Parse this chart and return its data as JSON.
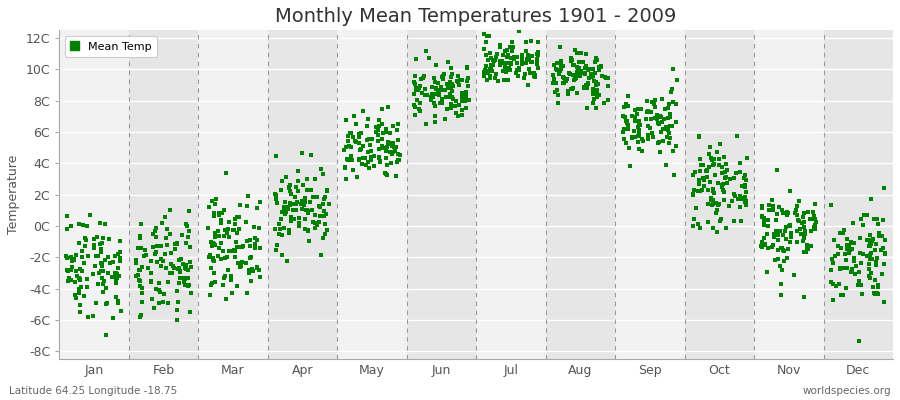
{
  "title": "Monthly Mean Temperatures 1901 - 2009",
  "ylabel": "Temperature",
  "subtitle_left": "Latitude 64.25 Longitude -18.75",
  "subtitle_right": "worldspecies.org",
  "yticks": [
    -8,
    -6,
    -4,
    -2,
    0,
    2,
    4,
    6,
    8,
    10,
    12
  ],
  "ytick_labels": [
    "-8C",
    "-6C",
    "-4C",
    "-2C",
    "0C",
    "2C",
    "4C",
    "6C",
    "8C",
    "10C",
    "12C"
  ],
  "ylim": [
    -8.5,
    12.5
  ],
  "months": [
    "Jan",
    "Feb",
    "Mar",
    "Apr",
    "May",
    "Jun",
    "Jul",
    "Aug",
    "Sep",
    "Oct",
    "Nov",
    "Dec"
  ],
  "dot_color": "#008000",
  "bg_light": "#f2f2f2",
  "bg_dark": "#e6e6e6",
  "dashed_color": "#999999",
  "hgrid_color": "#ffffff",
  "n_years": 109,
  "seed": 42,
  "mean_temps": [
    -2.5,
    -2.8,
    -1.2,
    1.2,
    4.8,
    8.5,
    10.5,
    9.5,
    6.5,
    2.5,
    -0.3,
    -1.8
  ],
  "std_temps": [
    1.7,
    1.6,
    1.5,
    1.3,
    1.1,
    0.9,
    0.75,
    0.85,
    1.1,
    1.2,
    1.4,
    1.6
  ],
  "legend_label": "Mean Temp",
  "title_fontsize": 14,
  "axis_label_fontsize": 9,
  "tick_fontsize": 9,
  "dot_size": 5,
  "fig_bg": "#ffffff"
}
